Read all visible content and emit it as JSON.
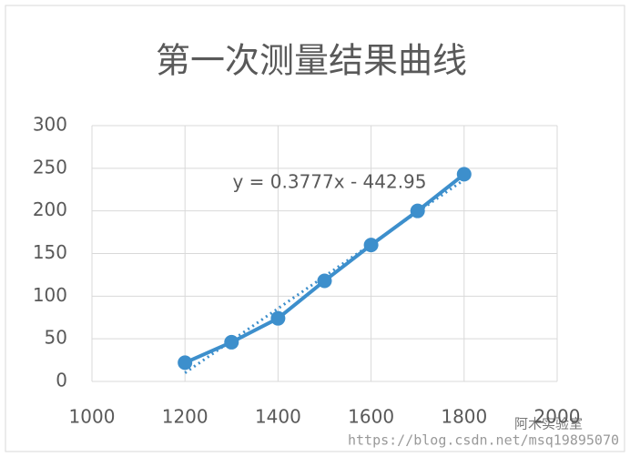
{
  "chart_data": {
    "type": "scatter-line",
    "title": "第一次测量结果曲线",
    "annotation": "y = 0.3777x - 442.95",
    "x": [
      1200,
      1300,
      1400,
      1500,
      1600,
      1700,
      1800
    ],
    "series": [
      {
        "color": "#3d8fcc",
        "values": [
          22,
          46,
          74,
          118,
          160,
          200,
          243
        ]
      }
    ],
    "xlim": [
      1000,
      2000
    ],
    "xticks": [
      1000,
      1200,
      1400,
      1600,
      1800,
      2000
    ],
    "ylim": [
      0,
      300
    ],
    "yticks": [
      0,
      50,
      100,
      150,
      200,
      250,
      300
    ],
    "grid": true,
    "trendline": "linear",
    "watermark": {
      "brand": "阿木实验室",
      "url": "https://blog.csdn.net/msq19895070"
    }
  }
}
